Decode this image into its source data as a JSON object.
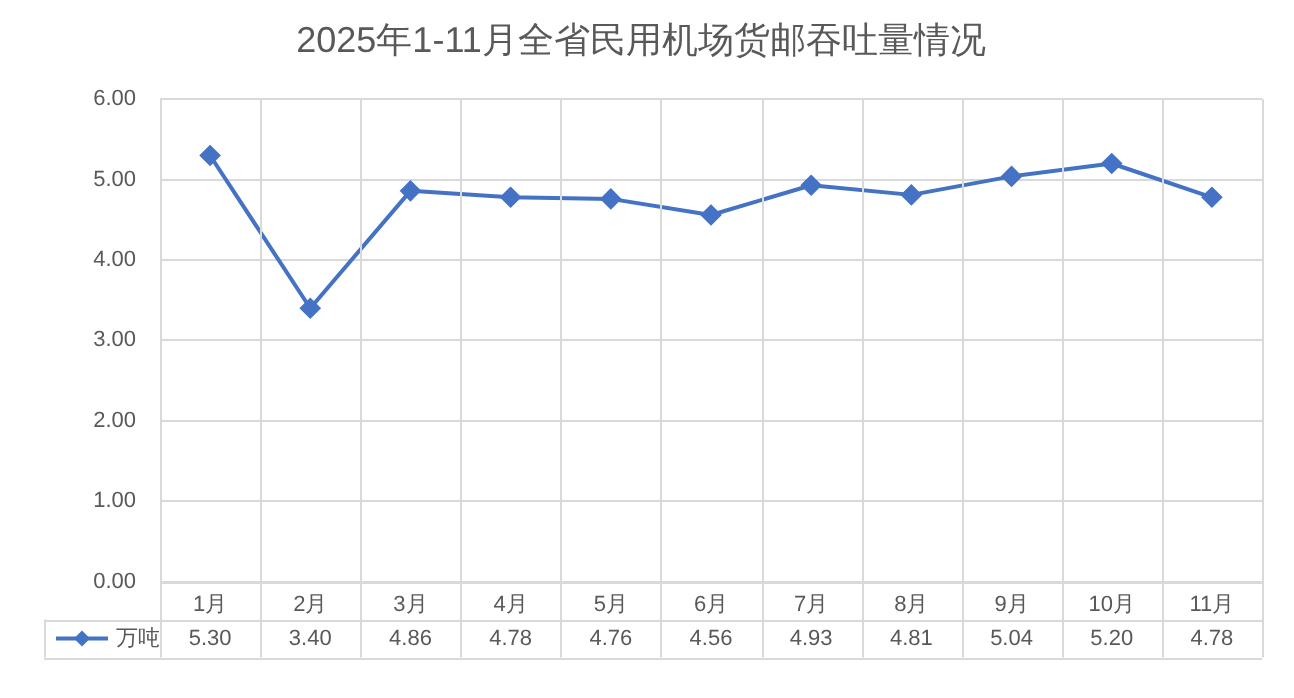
{
  "chart_data": {
    "type": "line",
    "title": "2025年1-11月全省民用机场货邮吞吐量情况",
    "categories": [
      "1月",
      "2月",
      "3月",
      "4月",
      "5月",
      "6月",
      "7月",
      "8月",
      "9月",
      "10月",
      "11月"
    ],
    "series": [
      {
        "name": "万吨",
        "color": "#4472c4",
        "values": [
          5.3,
          3.4,
          4.86,
          4.78,
          4.76,
          4.56,
          4.93,
          4.81,
          5.04,
          5.2,
          4.78
        ],
        "value_labels": [
          "5.30",
          "3.40",
          "4.86",
          "4.78",
          "4.76",
          "4.56",
          "4.93",
          "4.81",
          "5.04",
          "5.20",
          "4.78"
        ]
      }
    ],
    "ylim": [
      0,
      6
    ],
    "yticks": [
      {
        "value": 0,
        "label": "0.00"
      },
      {
        "value": 1,
        "label": "1.00"
      },
      {
        "value": 2,
        "label": "2.00"
      },
      {
        "value": 3,
        "label": "3.00"
      },
      {
        "value": 4,
        "label": "4.00"
      },
      {
        "value": 5,
        "label": "5.00"
      },
      {
        "value": 6,
        "label": "6.00"
      }
    ],
    "grid": true,
    "legend": "bottom left",
    "marker": "diamond",
    "line_style": "solid"
  }
}
